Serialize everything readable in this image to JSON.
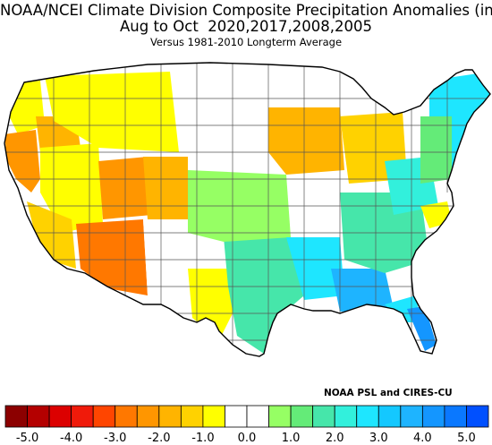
{
  "title": {
    "line1": "NOAA/NCEI Climate Division Composite Precipitation Anomalies (in)",
    "line2": "Aug to Oct  2020,2017,2008,2005",
    "line3": "Versus 1981-2010 Longterm Average"
  },
  "credit": "NOAA PSL and CIRES-CU",
  "legend": {
    "bins": [
      {
        "color": "#8c0000"
      },
      {
        "color": "#b40000"
      },
      {
        "color": "#dc0000"
      },
      {
        "color": "#f01a0a"
      },
      {
        "color": "#ff4500"
      },
      {
        "color": "#ff7800"
      },
      {
        "color": "#ff9600"
      },
      {
        "color": "#ffb400"
      },
      {
        "color": "#ffd200"
      },
      {
        "color": "#ffff00"
      },
      {
        "color": "#ffffff"
      },
      {
        "color": "#ffffff"
      },
      {
        "color": "#96ff64"
      },
      {
        "color": "#64eb78"
      },
      {
        "color": "#46e6aa"
      },
      {
        "color": "#32f0dc"
      },
      {
        "color": "#1ee6ff"
      },
      {
        "color": "#14c8ff"
      },
      {
        "color": "#1eb4ff"
      },
      {
        "color": "#1496ff"
      },
      {
        "color": "#0a78ff"
      },
      {
        "color": "#0050ff"
      }
    ],
    "tick_labels": [
      "-5.0",
      "-4.0",
      "-3.0",
      "-2.0",
      "-1.0",
      "0.0",
      "1.0",
      "2.0",
      "3.0",
      "4.0",
      "5.0"
    ]
  },
  "map_data": {
    "regions": [
      {
        "region": "Pacific Northwest coast",
        "color": "#ffff00"
      },
      {
        "region": "Northern California",
        "color": "#ff9600"
      },
      {
        "region": "Southern Oregon",
        "color": "#ffb400"
      },
      {
        "region": "Nevada / Great Basin",
        "color": "#ffff00"
      },
      {
        "region": "Utah",
        "color": "#ff9600"
      },
      {
        "region": "Arizona",
        "color": "#ff7800"
      },
      {
        "region": "Southern California",
        "color": "#ffd200"
      },
      {
        "region": "Idaho / Montana",
        "color": "#ffff00"
      },
      {
        "region": "Colorado",
        "color": "#ffb400"
      },
      {
        "region": "Upper Midwest",
        "color": "#ffb400"
      },
      {
        "region": "Great Lakes",
        "color": "#ffd200"
      },
      {
        "region": "Central Plains",
        "color": "#96ff64"
      },
      {
        "region": "Lower Mississippi Valley",
        "color": "#1ee6ff"
      },
      {
        "region": "Gulf Coast",
        "color": "#1eb4ff"
      },
      {
        "region": "Florida",
        "color": "#1ee6ff"
      },
      {
        "region": "South Florida",
        "color": "#1496ff"
      },
      {
        "region": "Southeast",
        "color": "#46e6aa"
      },
      {
        "region": "Appalachians",
        "color": "#32f0dc"
      },
      {
        "region": "New England",
        "color": "#1ee6ff"
      },
      {
        "region": "Texas",
        "color": "#46e6aa"
      },
      {
        "region": "West Texas",
        "color": "#ffff00"
      },
      {
        "region": "New Mexico",
        "color": "#ffffff"
      },
      {
        "region": "Virginia coast",
        "color": "#ffff00"
      }
    ]
  }
}
